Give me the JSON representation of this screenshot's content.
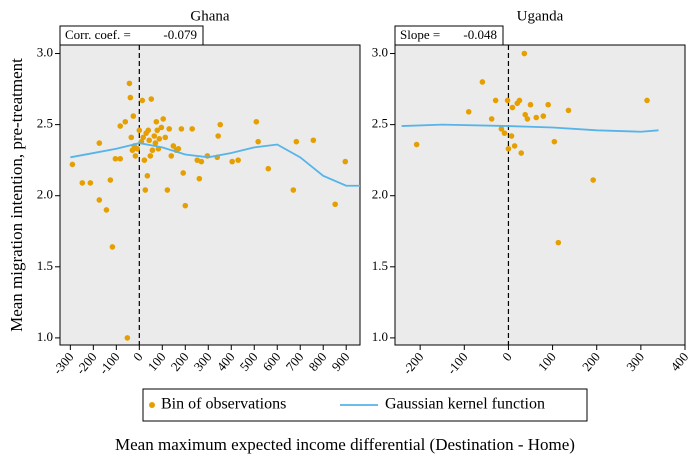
{
  "chart_data": [
    {
      "type": "scatter",
      "title": "Ghana",
      "ylabel": "Mean migration intention, pre-treatment",
      "annotation": {
        "label": "Corr. coef. =",
        "value": -0.079
      },
      "xlim": [
        -345,
        960
      ],
      "ylim": [
        0.95,
        3.06
      ],
      "xticks": [
        -300,
        -200,
        -100,
        0,
        100,
        200,
        300,
        400,
        500,
        600,
        700,
        800,
        900
      ],
      "yticks": [
        {
          "value": 1,
          "label": "1.0"
        },
        1.5,
        {
          "value": 2,
          "label": "2.0"
        },
        2.5,
        {
          "value": 3,
          "label": "3.0"
        }
      ],
      "vline": 0,
      "series": [
        {
          "name": "Bin of observations",
          "type": "scatter",
          "color": "#e69f00",
          "x": [
            -291,
            -248,
            -213,
            -174,
            -174,
            -143,
            -126,
            -117,
            -104,
            -83,
            -83,
            -61,
            -52,
            -43,
            -39,
            -35,
            -30,
            -26,
            -22,
            -17,
            -9,
            0,
            9,
            13,
            17,
            22,
            26,
            30,
            35,
            39,
            43,
            48,
            52,
            57,
            65,
            70,
            74,
            78,
            83,
            87,
            96,
            104,
            113,
            122,
            130,
            139,
            148,
            161,
            170,
            183,
            191,
            200,
            230,
            252,
            261,
            270,
            296,
            339,
            343,
            352,
            404,
            430,
            509,
            517,
            561,
            670,
            683,
            757,
            852,
            896
          ],
          "values": [
            2.22,
            2.09,
            2.09,
            2.37,
            1.97,
            1.9,
            2.11,
            1.64,
            2.26,
            2.26,
            2.49,
            2.52,
            1.0,
            2.79,
            2.69,
            2.41,
            2.32,
            2.56,
            2.35,
            2.28,
            2.33,
            2.46,
            2.38,
            2.67,
            2.41,
            2.25,
            2.04,
            2.44,
            2.14,
            2.46,
            2.39,
            2.28,
            2.68,
            2.32,
            2.42,
            2.37,
            2.52,
            2.46,
            2.33,
            2.4,
            2.48,
            2.54,
            2.41,
            2.04,
            2.47,
            2.28,
            2.35,
            2.32,
            2.33,
            2.47,
            2.16,
            1.93,
            2.47,
            2.25,
            2.12,
            2.24,
            2.28,
            2.27,
            2.42,
            2.5,
            2.24,
            2.25,
            2.52,
            2.38,
            2.19,
            2.04,
            2.38,
            2.39,
            1.94,
            2.24
          ]
        },
        {
          "name": "Gaussian kernel function",
          "type": "line",
          "color": "#56b4e9",
          "x": [
            -300,
            -200,
            -100,
            0,
            100,
            200,
            300,
            400,
            500,
            600,
            700,
            800,
            900,
            960
          ],
          "values": [
            2.27,
            2.3,
            2.33,
            2.37,
            2.34,
            2.29,
            2.27,
            2.3,
            2.34,
            2.36,
            2.27,
            2.14,
            2.07,
            2.07
          ]
        }
      ]
    },
    {
      "type": "scatter",
      "title": "Uganda",
      "annotation": {
        "label": "Slope =",
        "value": -0.048
      },
      "xlim": [
        -257,
        400
      ],
      "ylim": [
        0.95,
        3.06
      ],
      "xticks": [
        -200,
        -100,
        0,
        100,
        200,
        300,
        400
      ],
      "yticks": [
        {
          "value": 1,
          "label": "1.0"
        },
        1.5,
        {
          "value": 2,
          "label": "2.0"
        },
        2.5,
        {
          "value": 3,
          "label": "3.0"
        }
      ],
      "vline": 0,
      "series": [
        {
          "type": "scatter",
          "color": "#e69f00",
          "x": [
            -208,
            -90,
            -59,
            -38,
            -29,
            -16,
            -9,
            -2,
            0,
            7,
            9,
            14,
            20,
            25,
            29,
            36,
            38,
            43,
            50,
            63,
            79,
            90,
            104,
            113,
            136,
            192,
            314
          ],
          "values": [
            2.36,
            2.59,
            2.8,
            2.54,
            2.67,
            2.47,
            2.44,
            2.67,
            2.33,
            2.42,
            2.62,
            2.35,
            2.65,
            2.67,
            2.3,
            3.0,
            2.57,
            2.54,
            2.64,
            2.55,
            2.56,
            2.64,
            2.38,
            1.67,
            2.6,
            2.11,
            2.67
          ]
        },
        {
          "type": "line",
          "color": "#56b4e9",
          "x": [
            -242,
            -150,
            0,
            100,
            200,
            300,
            340
          ],
          "values": [
            2.49,
            2.5,
            2.49,
            2.48,
            2.46,
            2.45,
            2.46
          ]
        }
      ]
    }
  ],
  "xlabel": "Mean maximum expected income differential (Destination - Home)"
}
